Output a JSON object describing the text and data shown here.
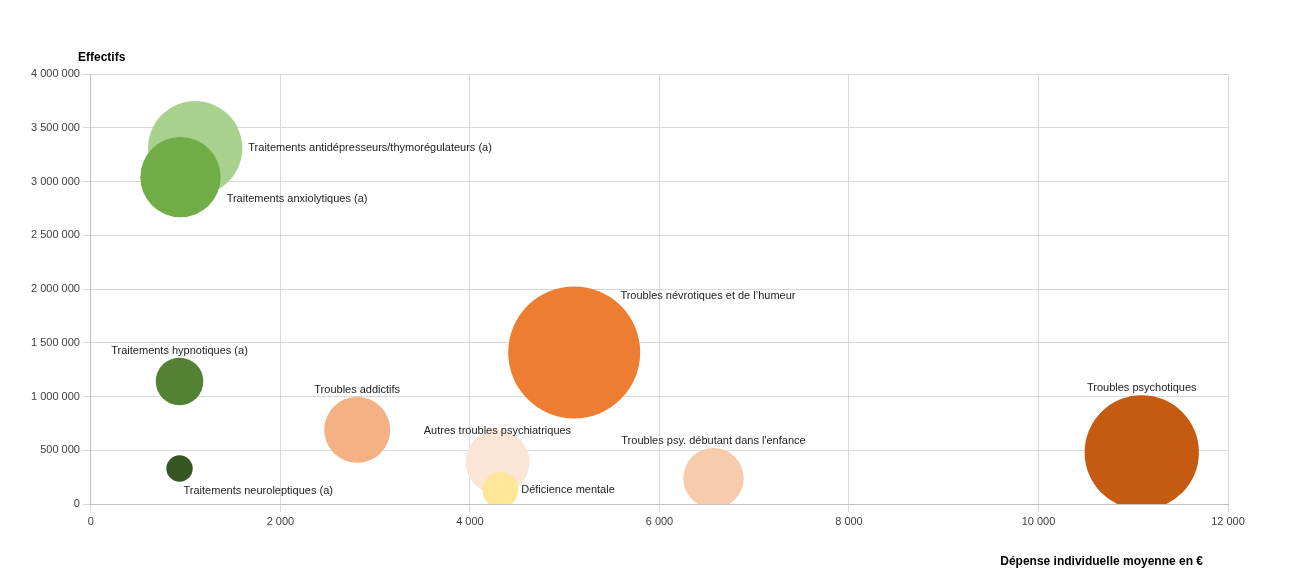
{
  "chart_data": {
    "type": "bubble",
    "xlabel": "Dépense individuelle moyenne en €",
    "ylabel": "Effectifs",
    "xlim": [
      0,
      12000
    ],
    "xticks": [
      0,
      2000,
      4000,
      6000,
      8000,
      10000,
      12000
    ],
    "ylim": [
      0,
      4000000
    ],
    "yticks": [
      0,
      500000,
      1000000,
      1500000,
      2000000,
      2500000,
      3000000,
      3500000,
      4000000
    ],
    "grid": true,
    "legend": false,
    "series": [
      {
        "name": "Traitements antidépresseurs/thymorégulateurs (a)",
        "color": "#a9d18e",
        "x": [
          1100
        ],
        "values": [
          3310000
        ],
        "sizes": [
          0.51
        ]
      },
      {
        "name": "Traitements anxiolytiques (a)",
        "color": "#70ad47",
        "x": [
          945
        ],
        "values": [
          3040000
        ],
        "sizes": [
          0.37
        ]
      },
      {
        "name": "Traitements hypnotiques (a)",
        "color": "#548235",
        "x": [
          935
        ],
        "values": [
          1140000
        ],
        "sizes": [
          0.13
        ]
      },
      {
        "name": "Traitements neuroleptiques (a)",
        "color": "#375623",
        "x": [
          935
        ],
        "values": [
          330000
        ],
        "sizes": [
          0.04
        ]
      },
      {
        "name": "Troubles addictifs",
        "color": "#f4b183",
        "x": [
          2810
        ],
        "values": [
          690000
        ],
        "sizes": [
          0.25
        ]
      },
      {
        "name": "Autres troubles psychiatriques",
        "color": "#fbe5d6",
        "x": [
          4290
        ],
        "values": [
          390000
        ],
        "sizes": [
          0.235
        ]
      },
      {
        "name": "Déficience mentale",
        "color": "#ffe699",
        "x": [
          4320
        ],
        "values": [
          130000
        ],
        "sizes": [
          0.074
        ]
      },
      {
        "name": "Troubles névrotiques et de l’humeur",
        "color": "#ed7d31",
        "x": [
          5100
        ],
        "values": [
          1410000
        ],
        "sizes": [
          1
        ]
      },
      {
        "name": "Troubles psy. débutant dans l'enfance",
        "color": "#f8cbad",
        "x": [
          6570
        ],
        "values": [
          240000
        ],
        "sizes": [
          0.21
        ]
      },
      {
        "name": "Troubles psychotiques",
        "color": "#c55a11",
        "x": [
          11090
        ],
        "values": [
          480000
        ],
        "sizes": [
          0.75
        ]
      }
    ]
  }
}
